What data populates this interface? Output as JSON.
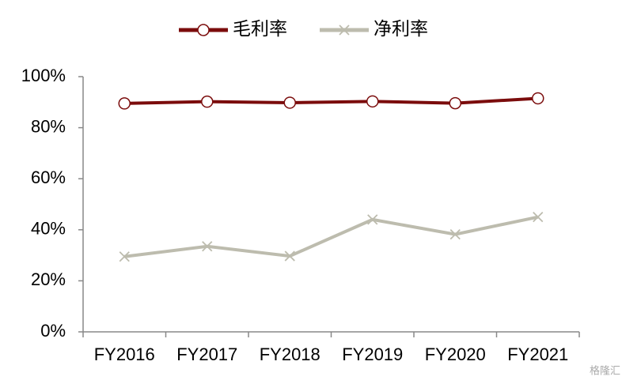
{
  "chart_data": {
    "type": "line",
    "categories": [
      "FY2016",
      "FY2017",
      "FY2018",
      "FY2019",
      "FY2020",
      "FY2021"
    ],
    "series": [
      {
        "name": "毛利率",
        "color": "#7b0c0c",
        "marker": "circle",
        "values": [
          89.5,
          90.2,
          89.8,
          90.3,
          89.6,
          91.5
        ]
      },
      {
        "name": "净利率",
        "color": "#bdbcae",
        "marker": "x",
        "values": [
          29.5,
          33.5,
          29.7,
          44,
          38.2,
          45
        ]
      }
    ],
    "ylim": [
      0,
      100
    ],
    "yticks": [
      {
        "value": 0,
        "label": "0%"
      },
      {
        "value": 20,
        "label": "20%"
      },
      {
        "value": 40,
        "label": "40%"
      },
      {
        "value": 60,
        "label": "60%"
      },
      {
        "value": 80,
        "label": "80%"
      },
      {
        "value": 100,
        "label": "100%"
      }
    ],
    "grid": false,
    "legend": "top",
    "watermark": "格隆汇"
  }
}
